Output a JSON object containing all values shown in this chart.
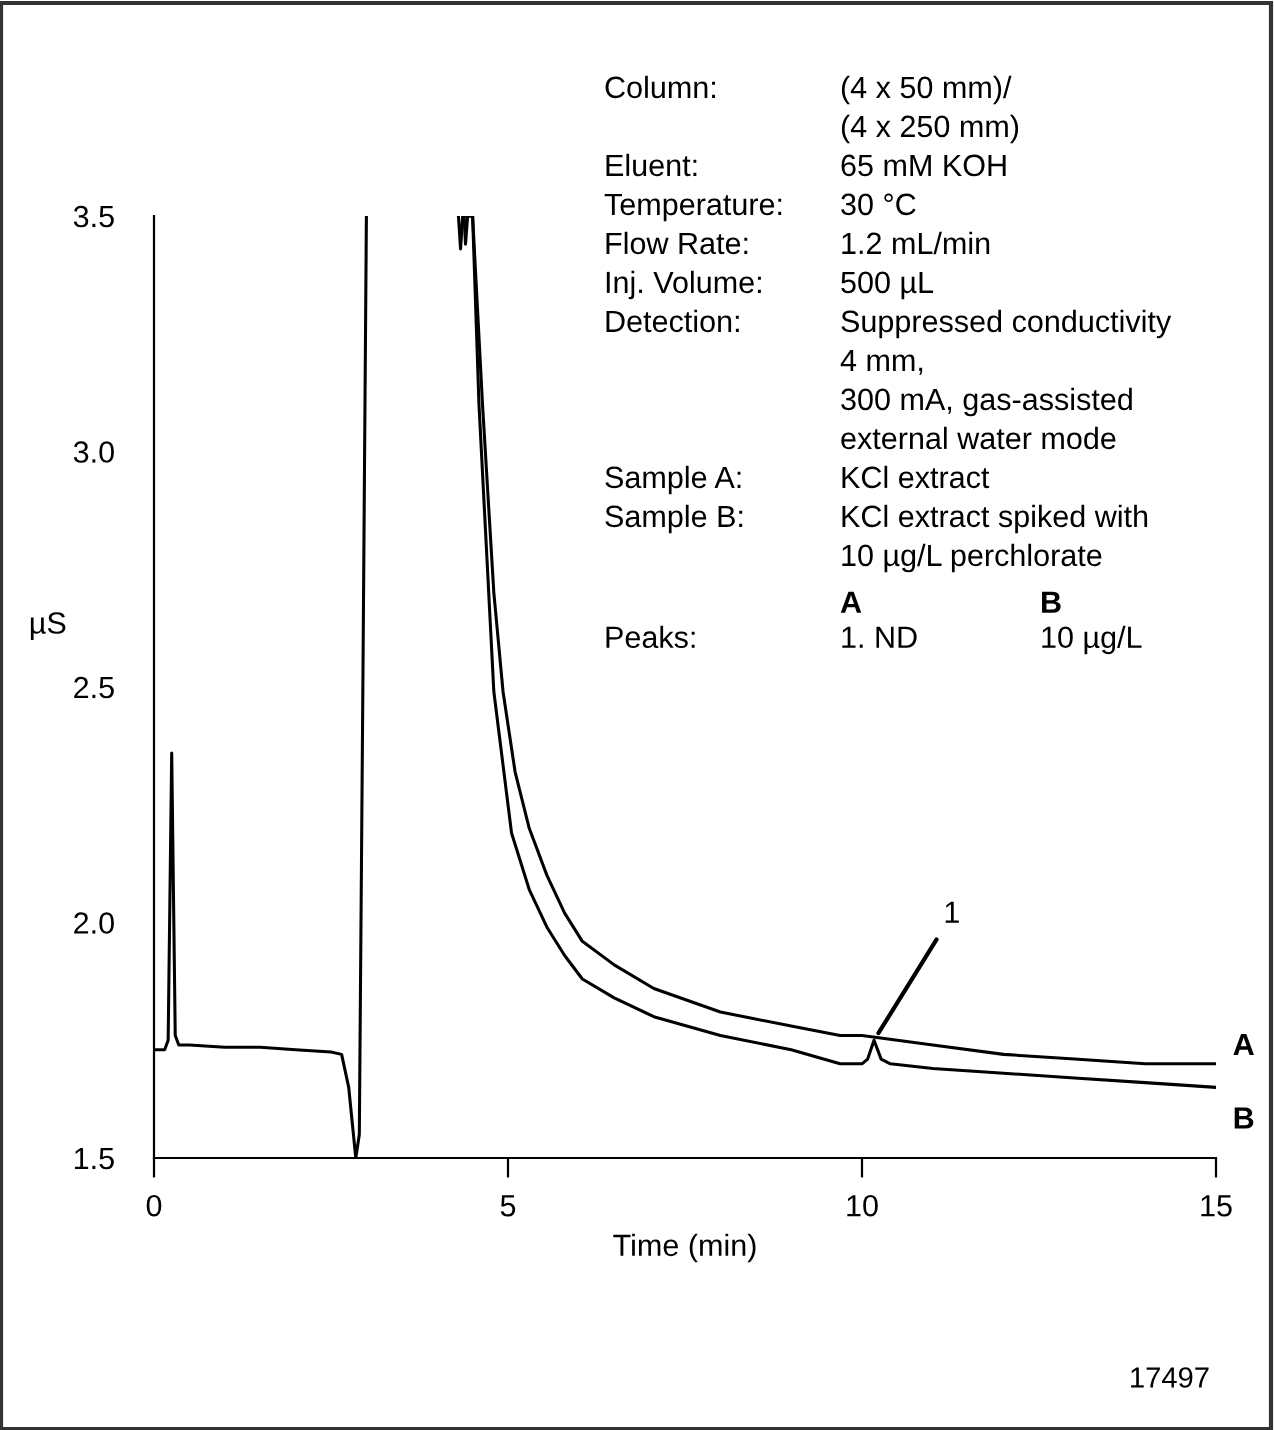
{
  "chart_data": {
    "type": "line",
    "xlabel": "Time (min)",
    "ylabel": "µS",
    "xlim": [
      0,
      15
    ],
    "xticks": [
      0,
      5,
      10,
      15
    ],
    "ylim": [
      1.5,
      3.5
    ],
    "yticks": [
      {
        "value": 1.5,
        "label": "1.5"
      },
      {
        "value": 2.0,
        "label": "2.0"
      },
      {
        "value": 2.5,
        "label": "2.5"
      },
      {
        "value": 3.0,
        "label": "3.0"
      },
      {
        "value": 3.5,
        "label": "3.5"
      }
    ],
    "grid": false,
    "legend": false,
    "marker": "none",
    "line_style": "solid",
    "series": [
      {
        "name": "A",
        "color": "#000000",
        "x": [
          0.0,
          0.15,
          0.2,
          0.25,
          0.3,
          0.35,
          0.5,
          1.0,
          1.5,
          2.0,
          2.5,
          2.65,
          2.75,
          2.85,
          2.9,
          2.95,
          3.0,
          3.05,
          4.38,
          4.4,
          4.43,
          4.5,
          4.64,
          4.8,
          4.93,
          5.1,
          5.3,
          5.55,
          5.8,
          6.05,
          6.5,
          7.06,
          8.0,
          9.0,
          9.69,
          10.0,
          10.5,
          11.0,
          12.0,
          13.0,
          14.0,
          15.0
        ],
        "values": [
          1.73,
          1.73,
          1.75,
          2.36,
          1.76,
          1.74,
          1.74,
          1.735,
          1.735,
          1.73,
          1.725,
          1.72,
          1.65,
          1.5,
          1.55,
          2.5,
          3.5,
          null,
          3.5,
          3.44,
          3.5,
          3.5,
          3.1,
          2.7,
          2.49,
          2.32,
          2.2,
          2.1,
          2.02,
          1.96,
          1.91,
          1.86,
          1.81,
          1.78,
          1.76,
          1.76,
          1.75,
          1.74,
          1.72,
          1.71,
          1.7,
          1.7
        ]
      },
      {
        "name": "B",
        "color": "#000000",
        "x": [
          4.3,
          4.33,
          4.36,
          4.5,
          4.59,
          4.8,
          5.05,
          5.3,
          5.55,
          5.8,
          6.05,
          6.5,
          7.06,
          8.0,
          9.0,
          9.69,
          10.0,
          10.08,
          10.17,
          10.27,
          10.4,
          11.0,
          12.0,
          13.0,
          14.0,
          15.0
        ],
        "values": [
          3.5,
          3.43,
          3.5,
          3.5,
          3.1,
          2.49,
          2.19,
          2.07,
          1.99,
          1.93,
          1.88,
          1.84,
          1.8,
          1.76,
          1.73,
          1.7,
          1.7,
          1.71,
          1.75,
          1.71,
          1.7,
          1.69,
          1.68,
          1.67,
          1.66,
          1.65
        ]
      }
    ],
    "annotations": [
      {
        "text": "1",
        "x": 10.17,
        "y": 1.75
      },
      "Column:",
      "(4 x 50 mm)/",
      "(4 x 250 mm)",
      "Eluent:",
      "65 mM KOH",
      "Temperature:",
      "30 °C",
      "Flow Rate:",
      "1.2 mL/min",
      "Inj. Volume:",
      "500 µL",
      "Detection:",
      "Suppressed conductivity",
      "4 mm,",
      "300 mA, gas-assisted",
      "external water mode",
      "Sample A:",
      "KCl extract",
      "Sample B:",
      "KCl extract spiked with",
      "10 µg/L perchlorate",
      "A",
      "B",
      "Peaks:",
      "1. ND",
      "10 µg/L",
      "17497"
    ]
  }
}
